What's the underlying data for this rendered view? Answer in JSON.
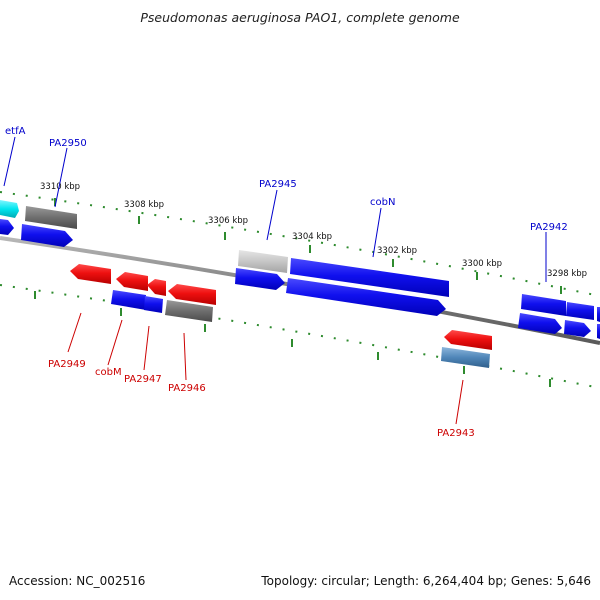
{
  "title": "Pseudomonas aeruginosa PAO1, complete genome",
  "footer": {
    "accession": "Accession: NC_002516",
    "summary": "Topology: circular; Length: 6,264,404 bp; Genes: 5,646"
  },
  "colors": {
    "backbone": "#808080",
    "tick": "#2e8b2e",
    "plus_label": "#0000cc",
    "minus_label": "#cc0000",
    "forward_gene": "#0000ee",
    "reverse_gene": "#ee0000",
    "cyan_gene": "#00e5ee",
    "dark_gray_gene": "#6e6e6e",
    "light_gray_gene": "#c8c8c8",
    "steel_gene": "#4f86b8"
  },
  "scale_labels": [
    "3310 kbp",
    "3308 kbp",
    "3306 kbp",
    "3304 kbp",
    "3302 kbp",
    "3300 kbp",
    "3298 kbp"
  ],
  "gene_labels_top": [
    "etfA",
    "PA2950",
    "PA2945",
    "cobN",
    "PA2942"
  ],
  "gene_labels_bottom": [
    "PA2949",
    "cobM",
    "PA2947",
    "PA2946",
    "PA2943"
  ],
  "features": [
    {
      "name": "etfA",
      "strand": "plus",
      "color": "cyan",
      "track": "outer"
    },
    {
      "name": "PA2950",
      "strand": "plus",
      "color": "dark_gray",
      "track": "outer"
    },
    {
      "name": "PA2950",
      "strand": "plus",
      "color": "blue",
      "track": "inner"
    },
    {
      "name": "PA2949",
      "strand": "minus",
      "color": "red",
      "track": "inner"
    },
    {
      "name": "cobM",
      "strand": "minus",
      "color": "red",
      "track": "inner"
    },
    {
      "name": "PA2947",
      "strand": "minus",
      "color": "red",
      "track": "inner"
    },
    {
      "name": "PA2946",
      "strand": "minus",
      "color": "red",
      "track": "inner"
    },
    {
      "name": "PA2947",
      "strand": "minus",
      "color": "blue",
      "track": "outer"
    },
    {
      "name": "PA2946",
      "strand": "minus",
      "color": "dark_gray",
      "track": "outer"
    },
    {
      "name": "PA2945",
      "strand": "plus",
      "color": "light_gray",
      "track": "outer"
    },
    {
      "name": "PA2945",
      "strand": "plus",
      "color": "blue",
      "track": "inner"
    },
    {
      "name": "cobN",
      "strand": "plus",
      "color": "blue",
      "track": "outer"
    },
    {
      "name": "cobN",
      "strand": "plus",
      "color": "blue",
      "track": "inner"
    },
    {
      "name": "PA2943",
      "strand": "minus",
      "color": "red",
      "track": "inner"
    },
    {
      "name": "PA2943",
      "strand": "minus",
      "color": "steel",
      "track": "outer"
    },
    {
      "name": "PA2942",
      "strand": "plus",
      "color": "blue",
      "track": "outer"
    },
    {
      "name": "PA2942",
      "strand": "plus",
      "color": "blue",
      "track": "inner"
    }
  ]
}
